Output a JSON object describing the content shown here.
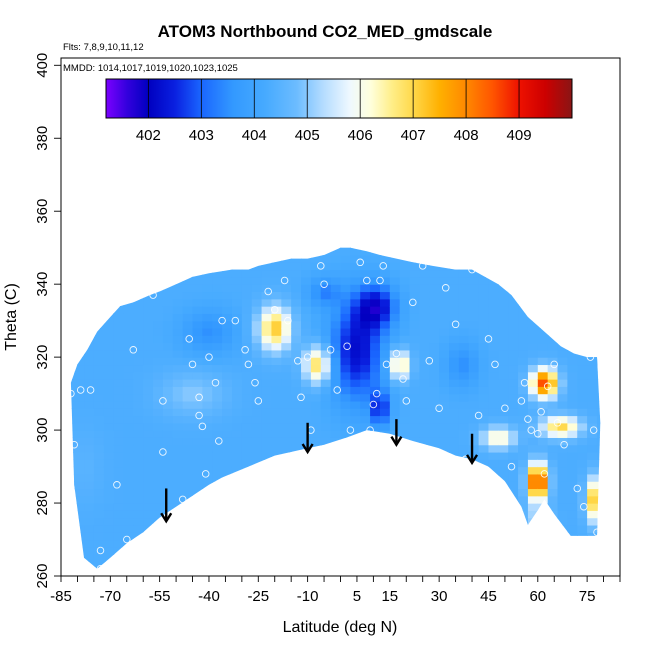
{
  "chart_data": {
    "type": "heatmap",
    "title": "ATOM3 Northbound CO2_MED_gmdscale",
    "annotations": {
      "flights": "Flts: 7,8,9,10,11,12",
      "dates": "MMDD: 1014,1017,1019,1020,1023,1025"
    },
    "xlabel": "Latitude (deg N)",
    "ylabel": "Theta (C)",
    "xlim": [
      -85,
      85
    ],
    "ylim": [
      260,
      402
    ],
    "x_ticks": [
      -85,
      -70,
      -55,
      -40,
      -25,
      -10,
      5,
      15,
      30,
      45,
      60,
      75
    ],
    "y_ticks": [
      260,
      280,
      300,
      320,
      340,
      360,
      380,
      400
    ],
    "colorbar": {
      "range": [
        401.2,
        410.0
      ],
      "ticks": [
        402,
        403,
        404,
        405,
        406,
        407,
        408,
        409
      ],
      "stops": [
        {
          "v": 401.2,
          "color": "#7b00ff"
        },
        {
          "v": 401.6,
          "color": "#3300dd"
        },
        {
          "v": 402.0,
          "color": "#0000c0"
        },
        {
          "v": 402.5,
          "color": "#0a20e0"
        },
        {
          "v": 403.0,
          "color": "#1a66ff"
        },
        {
          "v": 403.6,
          "color": "#3399ff"
        },
        {
          "v": 404.2,
          "color": "#46aaff"
        },
        {
          "v": 404.8,
          "color": "#6cbcff"
        },
        {
          "v": 405.3,
          "color": "#b4dcff"
        },
        {
          "v": 405.8,
          "color": "#eef8ff"
        },
        {
          "v": 406.2,
          "color": "#ffffdc"
        },
        {
          "v": 406.6,
          "color": "#ffee88"
        },
        {
          "v": 407.0,
          "color": "#ffd84a"
        },
        {
          "v": 407.5,
          "color": "#ffb000"
        },
        {
          "v": 408.0,
          "color": "#ff8800"
        },
        {
          "v": 408.5,
          "color": "#ff5500"
        },
        {
          "v": 409.0,
          "color": "#ee1100"
        },
        {
          "v": 409.5,
          "color": "#cc0000"
        },
        {
          "v": 410.0,
          "color": "#8a1515"
        }
      ]
    },
    "background_value": 404.3,
    "hotspots": [
      {
        "x": -20,
        "y": 328,
        "v": 407.2,
        "rx": 5,
        "ry": 6
      },
      {
        "x": -7,
        "y": 318,
        "v": 407.0,
        "rx": 4,
        "ry": 5
      },
      {
        "x": 18,
        "y": 318,
        "v": 406.9,
        "rx": 3,
        "ry": 4
      },
      {
        "x": 62,
        "y": 313,
        "v": 408.6,
        "rx": 4,
        "ry": 4
      },
      {
        "x": 67,
        "y": 301,
        "v": 407.0,
        "rx": 6,
        "ry": 3
      },
      {
        "x": 60,
        "y": 286,
        "v": 409.2,
        "rx": 3,
        "ry": 5
      },
      {
        "x": 78,
        "y": 281,
        "v": 407.8,
        "rx": 3,
        "ry": 6
      },
      {
        "x": 48,
        "y": 298,
        "v": 406.4,
        "rx": 5,
        "ry": 3
      },
      {
        "x": 5,
        "y": 322,
        "v": 402.2,
        "rx": 8,
        "ry": 14
      },
      {
        "x": 11,
        "y": 334,
        "v": 402.4,
        "rx": 6,
        "ry": 6
      },
      {
        "x": 12,
        "y": 306,
        "v": 402.6,
        "rx": 3,
        "ry": 5
      },
      {
        "x": -5,
        "y": 338,
        "v": 403.4,
        "rx": 5,
        "ry": 4
      },
      {
        "x": -40,
        "y": 327,
        "v": 403.5,
        "rx": 8,
        "ry": 6
      },
      {
        "x": -45,
        "y": 310,
        "v": 405.0,
        "rx": 10,
        "ry": 6
      },
      {
        "x": -78,
        "y": 290,
        "v": 404.5,
        "rx": 6,
        "ry": 10
      },
      {
        "x": 37,
        "y": 318,
        "v": 403.5,
        "rx": 5,
        "ry": 6
      },
      {
        "x": 60,
        "y": 276,
        "v": 405.2,
        "rx": 4,
        "ry": 4
      }
    ],
    "boundary_top": [
      [
        -82,
        313
      ],
      [
        -80,
        318
      ],
      [
        -77,
        322
      ],
      [
        -74,
        327
      ],
      [
        -70,
        331
      ],
      [
        -67,
        334
      ],
      [
        -63,
        335
      ],
      [
        -58,
        337
      ],
      [
        -55,
        338
      ],
      [
        -50,
        340
      ],
      [
        -45,
        342
      ],
      [
        -40,
        343
      ],
      [
        -33,
        344
      ],
      [
        -28,
        344
      ],
      [
        -25,
        345
      ],
      [
        -20,
        346
      ],
      [
        -15,
        347
      ],
      [
        -10,
        347
      ],
      [
        -5,
        348
      ],
      [
        0,
        350
      ],
      [
        3,
        350
      ],
      [
        8,
        349
      ],
      [
        12,
        348
      ],
      [
        17,
        347
      ],
      [
        22,
        346
      ],
      [
        28,
        345
      ],
      [
        35,
        344
      ],
      [
        40,
        344
      ],
      [
        48,
        340
      ],
      [
        52,
        337
      ],
      [
        57,
        331
      ],
      [
        62,
        327
      ],
      [
        67,
        323
      ],
      [
        71,
        321
      ],
      [
        75,
        320
      ],
      [
        78,
        320
      ],
      [
        79,
        302
      ]
    ],
    "boundary_bottom": [
      [
        79,
        302
      ],
      [
        78,
        271
      ],
      [
        70,
        271
      ],
      [
        65,
        277
      ],
      [
        62,
        281
      ],
      [
        60,
        278
      ],
      [
        57,
        274
      ],
      [
        55,
        279
      ],
      [
        50,
        286
      ],
      [
        45,
        290
      ],
      [
        40,
        292
      ],
      [
        35,
        293
      ],
      [
        30,
        295
      ],
      [
        22,
        297
      ],
      [
        15,
        299
      ],
      [
        8,
        300
      ],
      [
        2,
        298
      ],
      [
        -5,
        296
      ],
      [
        -10,
        295
      ],
      [
        -20,
        293
      ],
      [
        -28,
        290
      ],
      [
        -36,
        287
      ],
      [
        -40,
        285
      ],
      [
        -45,
        282
      ],
      [
        -50,
        279
      ],
      [
        -55,
        276
      ],
      [
        -60,
        272
      ],
      [
        -65,
        269
      ],
      [
        -70,
        265
      ],
      [
        -74,
        262
      ],
      [
        -78,
        265
      ],
      [
        -81,
        285
      ],
      [
        -82,
        313
      ]
    ],
    "points": [
      [
        -82,
        310
      ],
      [
        -81,
        296
      ],
      [
        -79,
        311
      ],
      [
        -76,
        311
      ],
      [
        -73,
        267
      ],
      [
        -73,
        262
      ],
      [
        -68,
        285
      ],
      [
        -65,
        270
      ],
      [
        -63,
        322
      ],
      [
        -57,
        337
      ],
      [
        -54,
        308
      ],
      [
        -54,
        294
      ],
      [
        -48,
        281
      ],
      [
        -46,
        325
      ],
      [
        -45,
        318
      ],
      [
        -43,
        309
      ],
      [
        -43,
        304
      ],
      [
        -42,
        301
      ],
      [
        -41,
        288
      ],
      [
        -40,
        320
      ],
      [
        -38,
        313
      ],
      [
        -37,
        297
      ],
      [
        -36,
        330
      ],
      [
        -33,
        283
      ],
      [
        -32,
        330
      ],
      [
        -29,
        322
      ],
      [
        -28,
        318
      ],
      [
        -26,
        313
      ],
      [
        -25,
        308
      ],
      [
        -22,
        338
      ],
      [
        -20,
        333
      ],
      [
        -17,
        341
      ],
      [
        -16,
        330
      ],
      [
        -13,
        319
      ],
      [
        -12,
        309
      ],
      [
        -10,
        320
      ],
      [
        -9,
        300
      ],
      [
        -6,
        345
      ],
      [
        -5,
        340
      ],
      [
        -3,
        322
      ],
      [
        -1,
        311
      ],
      [
        2,
        323
      ],
      [
        3,
        300
      ],
      [
        6,
        346
      ],
      [
        8,
        341
      ],
      [
        9,
        300
      ],
      [
        10,
        307
      ],
      [
        11,
        310
      ],
      [
        12,
        341
      ],
      [
        13,
        345
      ],
      [
        14,
        318
      ],
      [
        17,
        321
      ],
      [
        19,
        314
      ],
      [
        20,
        308
      ],
      [
        22,
        335
      ],
      [
        25,
        345
      ],
      [
        27,
        319
      ],
      [
        30,
        306
      ],
      [
        32,
        339
      ],
      [
        35,
        329
      ],
      [
        38,
        292
      ],
      [
        40,
        344
      ],
      [
        42,
        304
      ],
      [
        45,
        325
      ],
      [
        47,
        318
      ],
      [
        50,
        306
      ],
      [
        52,
        290
      ],
      [
        55,
        308
      ],
      [
        56,
        313
      ],
      [
        57,
        303
      ],
      [
        58,
        300
      ],
      [
        60,
        299
      ],
      [
        61,
        305
      ],
      [
        62,
        288
      ],
      [
        63,
        312
      ],
      [
        65,
        318
      ],
      [
        66,
        302
      ],
      [
        68,
        296
      ],
      [
        72,
        284
      ],
      [
        74,
        279
      ],
      [
        76,
        320
      ],
      [
        77,
        300
      ],
      [
        78,
        272
      ]
    ],
    "arrows": [
      {
        "x": -53,
        "y_top": 284,
        "y_bottom": 275
      },
      {
        "x": -10,
        "y_top": 302,
        "y_bottom": 294
      },
      {
        "x": 17,
        "y_top": 303,
        "y_bottom": 296
      },
      {
        "x": 40,
        "y_top": 299,
        "y_bottom": 291
      }
    ]
  }
}
